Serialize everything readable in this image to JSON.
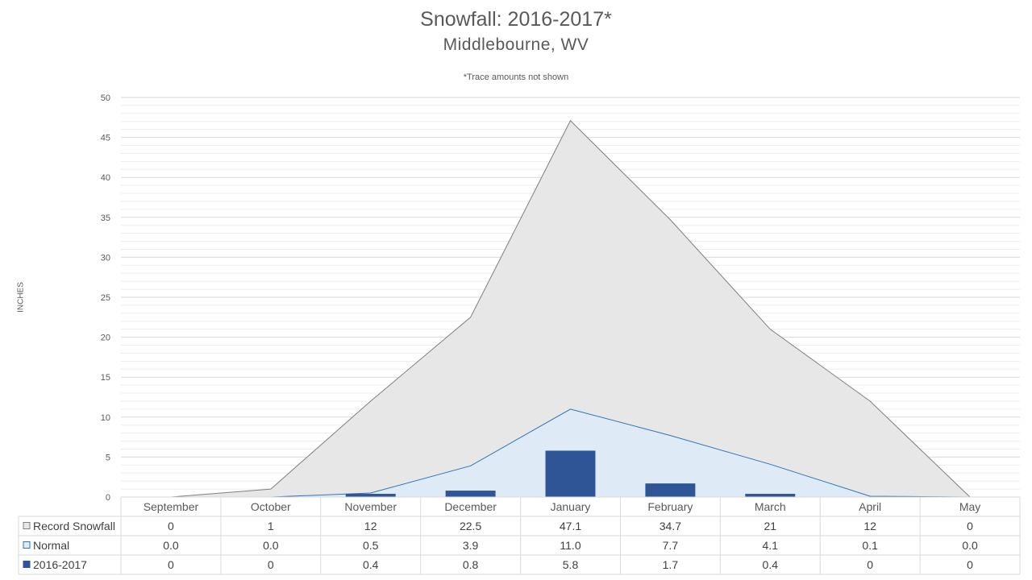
{
  "colors": {
    "record_fill": "#e7e7e7",
    "record_line": "#7f7f7f",
    "normal_fill": "#deebf7",
    "normal_line": "#2e75b6",
    "season_bar": "#2f5597",
    "grid_major": "#d9d9d9",
    "grid_minor": "#ededed",
    "table_border": "#d9d9d9"
  },
  "chart_data": {
    "type": "area",
    "title": "Snowfall: 2016-2017*",
    "subtitle": "Middlebourne, WV",
    "note": "*Trace amounts not shown",
    "ylabel": "INCHES",
    "xlabel": "",
    "ylim": [
      0,
      50
    ],
    "yticks": [
      0,
      5,
      10,
      15,
      20,
      25,
      30,
      35,
      40,
      45,
      50
    ],
    "grid": true,
    "legend_placement": "data-table-left",
    "categories": [
      "September",
      "October",
      "November",
      "December",
      "January",
      "February",
      "March",
      "April",
      "May"
    ],
    "series": [
      {
        "name": "Record Snowfall",
        "kind": "area",
        "values": [
          0,
          1,
          12,
          22.5,
          47.1,
          34.7,
          21,
          12,
          0
        ],
        "labels": [
          "0",
          "1",
          "12",
          "22.5",
          "47.1",
          "34.7",
          "21",
          "12",
          "0"
        ]
      },
      {
        "name": "Normal",
        "kind": "area",
        "values": [
          0.0,
          0.0,
          0.5,
          3.9,
          11.0,
          7.7,
          4.1,
          0.1,
          0.0
        ],
        "labels": [
          "0.0",
          "0.0",
          "0.5",
          "3.9",
          "11.0",
          "7.7",
          "4.1",
          "0.1",
          "0.0"
        ]
      },
      {
        "name": "2016-2017",
        "kind": "bar",
        "values": [
          0,
          0,
          0.4,
          0.8,
          5.8,
          1.7,
          0.4,
          0,
          0
        ],
        "labels": [
          "0",
          "0",
          "0.4",
          "0.8",
          "5.8",
          "1.7",
          "0.4",
          "0",
          "0"
        ]
      }
    ]
  }
}
